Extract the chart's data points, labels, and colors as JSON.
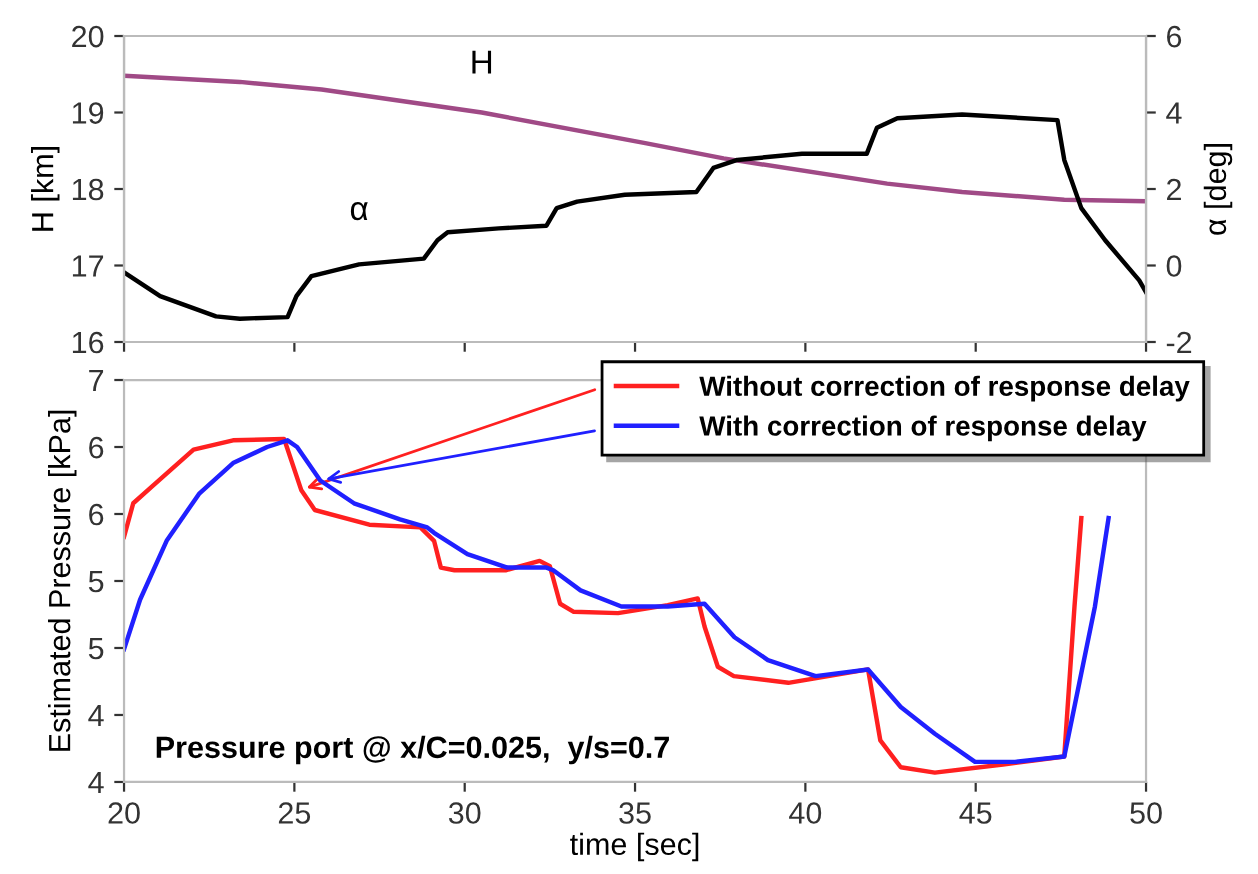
{
  "chart_data": [
    {
      "type": "line",
      "ylabel": "H [km]",
      "y2label": "α [deg]",
      "xlim": [
        20,
        50
      ],
      "xticks": [
        20,
        25,
        30,
        35,
        40,
        45,
        50
      ],
      "ylim": [
        16,
        20
      ],
      "yticks": [
        16,
        17,
        18,
        19,
        20
      ],
      "y2lim": [
        -2,
        6
      ],
      "y2ticks": [
        -2,
        0,
        2,
        4,
        6
      ],
      "tick_labels": "y",
      "legend": false,
      "grid": false,
      "series": [
        {
          "name": "H",
          "color": "#a04a86",
          "axis": "y",
          "x": [
            20,
            23.4,
            25.8,
            30.5,
            35.3,
            37.6,
            42.4,
            44.6,
            47.6,
            50
          ],
          "values": [
            19.48,
            19.4,
            19.3,
            19.0,
            18.6,
            18.4,
            18.07,
            17.96,
            17.86,
            17.84
          ]
        },
        {
          "name": "α",
          "color": "#000000",
          "axis": "y2",
          "x": [
            20,
            21.06,
            22.7,
            23.4,
            24.8,
            25.06,
            25.5,
            26.9,
            28.8,
            29.2,
            29.5,
            31.0,
            32.4,
            32.7,
            33.3,
            34.7,
            36.8,
            37.3,
            38.0,
            39.9,
            41.8,
            42.1,
            42.7,
            44.6,
            47.4,
            47.6,
            48.1,
            48.8,
            49.8,
            50
          ],
          "values": [
            -0.18,
            -0.8,
            -1.33,
            -1.39,
            -1.35,
            -0.8,
            -0.28,
            0.03,
            0.18,
            0.66,
            0.87,
            0.97,
            1.04,
            1.5,
            1.67,
            1.85,
            1.92,
            2.55,
            2.76,
            2.92,
            2.92,
            3.6,
            3.85,
            3.95,
            3.8,
            2.76,
            1.5,
            0.66,
            -0.39,
            -0.7
          ]
        }
      ]
    },
    {
      "type": "line",
      "xlabel": "time [sec]",
      "ylabel": "Estimated Pressure [kPa]",
      "xlim": [
        20,
        50
      ],
      "xticks": [
        20,
        25,
        30,
        35,
        40,
        45,
        50
      ],
      "ylim": [
        4,
        7
      ],
      "yticks": [
        {
          "value": 4,
          "label": "4"
        },
        {
          "value": 4.5,
          "label": "4"
        },
        {
          "value": 5,
          "label": "5"
        },
        {
          "value": 5.5,
          "label": "5"
        },
        {
          "value": 6,
          "label": "6"
        },
        {
          "value": 6.5,
          "label": "6"
        },
        {
          "value": 7,
          "label": "7"
        }
      ],
      "legend": "top right",
      "grid": false,
      "annotations": [
        "Pressure port @ x/C=0.025,  y/s=0.7"
      ],
      "series": [
        {
          "name": "Without correction of response delay",
          "color": "#ff2020",
          "x": [
            20,
            20.27,
            20.8,
            22.04,
            23.2,
            24.7,
            25.2,
            25.6,
            27.2,
            28.7,
            29.1,
            29.3,
            29.7,
            31.2,
            32.2,
            32.5,
            32.8,
            33.2,
            34.5,
            35.96,
            36.84,
            37.04,
            37.43,
            37.9,
            39.5,
            41.84,
            42.2,
            42.8,
            43.8,
            45.8,
            47.6,
            47.9,
            48.1
          ],
          "values": [
            5.83,
            6.08,
            6.2,
            6.48,
            6.55,
            6.56,
            6.18,
            6.03,
            5.92,
            5.9,
            5.8,
            5.6,
            5.58,
            5.58,
            5.65,
            5.61,
            5.33,
            5.27,
            5.26,
            5.32,
            5.37,
            5.16,
            4.86,
            4.79,
            4.74,
            4.84,
            4.31,
            4.11,
            4.07,
            4.13,
            4.19,
            5.31,
            5.97
          ]
        },
        {
          "name": "With correction of response delay",
          "color": "#2020ff",
          "x": [
            20,
            20.47,
            21.25,
            22.2,
            23.2,
            24.2,
            24.8,
            25.08,
            25.76,
            26.75,
            28.1,
            28.9,
            29.1,
            30.08,
            31.25,
            32.4,
            32.6,
            33.4,
            34.6,
            35.96,
            37.04,
            37.92,
            38.9,
            40.3,
            41.84,
            42.8,
            43.8,
            44.98,
            46.16,
            47.6,
            48.5,
            48.9
          ],
          "values": [
            4.99,
            5.36,
            5.8,
            6.15,
            6.38,
            6.5,
            6.55,
            6.5,
            6.25,
            6.08,
            5.96,
            5.9,
            5.86,
            5.7,
            5.6,
            5.6,
            5.58,
            5.43,
            5.31,
            5.31,
            5.33,
            5.08,
            4.91,
            4.79,
            4.84,
            4.56,
            4.36,
            4.15,
            4.15,
            4.19,
            5.31,
            5.97
          ]
        }
      ]
    }
  ]
}
